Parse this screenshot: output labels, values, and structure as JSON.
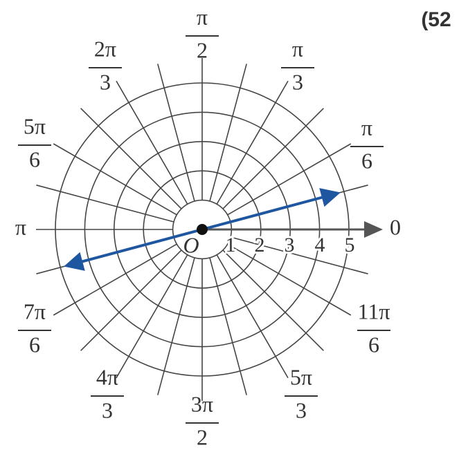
{
  "problem_number": "(52",
  "origin_label": "O",
  "zero_label": "0",
  "pi_label": "π",
  "ring_labels": [
    "1",
    "2",
    "3",
    "4",
    "5"
  ],
  "angle_labels": [
    {
      "num": "π",
      "den": "6"
    },
    {
      "num": "π",
      "den": "3"
    },
    {
      "num": "π",
      "den": "2"
    },
    {
      "num": "2π",
      "den": "3"
    },
    {
      "num": "5π",
      "den": "6"
    },
    {
      "num": "7π",
      "den": "6"
    },
    {
      "num": "4π",
      "den": "3"
    },
    {
      "num": "3π",
      "den": "2"
    },
    {
      "num": "5π",
      "den": "3"
    },
    {
      "num": "11π",
      "den": "6"
    }
  ]
}
